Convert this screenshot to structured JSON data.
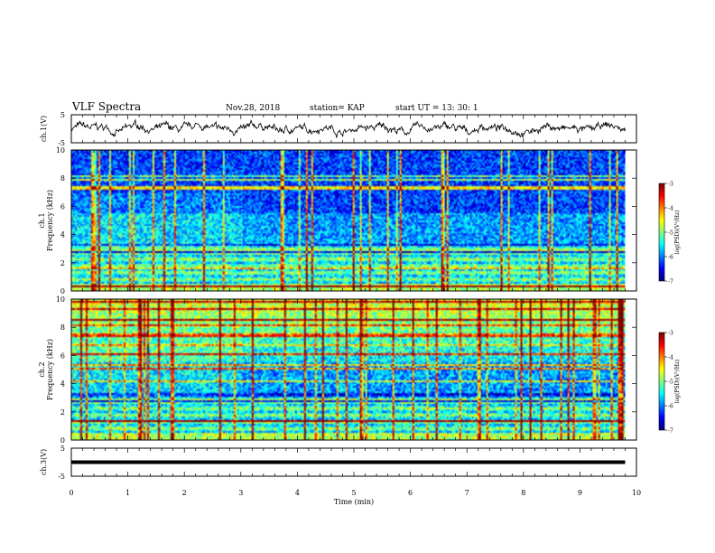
{
  "header": {
    "title": "VLF Spectra",
    "date": "Nov.28, 2018",
    "station": "station= KAP",
    "start_ut": "start  UT =   13: 30: 1"
  },
  "chart_data": [
    {
      "type": "line",
      "id": "ch1-waveform",
      "ylabel": "ch.1(V)",
      "ylim": [
        -5,
        5
      ],
      "yticks": [
        -5,
        5
      ],
      "xlim": [
        0,
        10
      ],
      "xticks": [
        0,
        1,
        2,
        3,
        4,
        5,
        6,
        7,
        8,
        9,
        10
      ],
      "data_end_min": 9.8,
      "color": "#000000"
    },
    {
      "type": "heatmap",
      "id": "ch1-spectrogram",
      "ylabel_top": "ch.1",
      "ylabel": "Frequency (kHz)",
      "ylim": [
        0,
        10
      ],
      "yticks": [
        0,
        2,
        4,
        6,
        8,
        10
      ],
      "xlim": [
        0,
        10
      ],
      "data_end_min": 9.8,
      "colorbar": {
        "label": "log(PSD)(V²/Hz)",
        "range": [
          -7,
          -3
        ],
        "ticks": [
          "-3",
          "-4",
          "-5",
          "-6",
          "-7"
        ]
      }
    },
    {
      "type": "heatmap",
      "id": "ch2-spectrogram",
      "ylabel_top": "ch.2",
      "ylabel": "Frequency (kHz)",
      "ylim": [
        0,
        10
      ],
      "yticks": [
        0,
        2,
        4,
        6,
        8,
        10
      ],
      "xlim": [
        0,
        10
      ],
      "data_end_min": 9.8,
      "colorbar": {
        "label": "log(PSD)(V²/Hz)",
        "range": [
          -7,
          -3
        ],
        "ticks": [
          "-3",
          "-4",
          "-5",
          "-6",
          "-7"
        ]
      }
    },
    {
      "type": "line",
      "id": "ch3-waveform",
      "ylabel": "ch.3(V)",
      "ylim": [
        -5,
        5
      ],
      "yticks": [
        -5,
        5
      ],
      "xlim": [
        0,
        10
      ],
      "xticks": [
        0,
        1,
        2,
        3,
        4,
        5,
        6,
        7,
        8,
        9,
        10
      ],
      "xlabel": "Time (min)",
      "constant_value": 0,
      "data_end_min": 9.8,
      "color": "#000000"
    }
  ]
}
